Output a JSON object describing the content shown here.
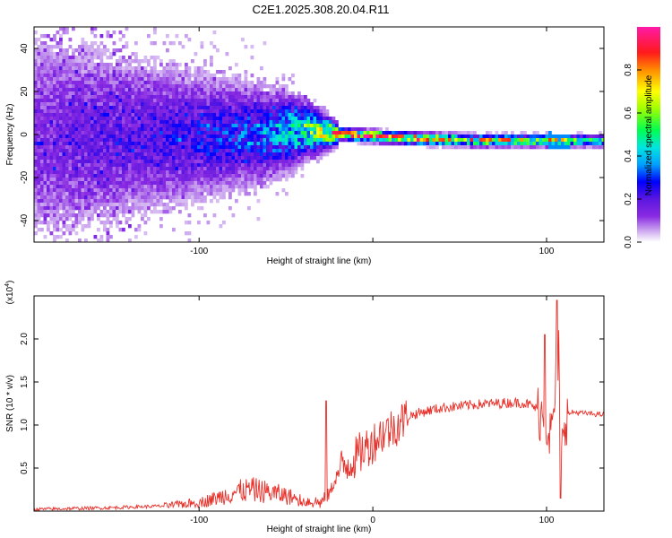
{
  "title": "C2E1.2025.308.20.04.R11",
  "chart_data": [
    {
      "type": "heatmap",
      "xlabel": "Height of straight line (km)",
      "ylabel": "Frequency (Hz)",
      "xlim": [
        -195,
        133
      ],
      "ylim": [
        -50,
        50
      ],
      "xticks": [
        -100,
        0,
        100
      ],
      "xtick_labels": [
        "-100",
        "",
        "100"
      ],
      "yticks": [
        -40,
        -20,
        0,
        20,
        40
      ],
      "ytick_labels": [
        "-40",
        "-20",
        "0",
        "20",
        "40"
      ],
      "colorbar": {
        "label": "Normalized spectral amplitude",
        "range": [
          0,
          1
        ],
        "ticks": [
          0.0,
          0.2,
          0.4,
          0.6,
          0.8
        ],
        "tick_labels": [
          "0.0",
          "0.2",
          "0.4",
          "0.6",
          "0.8"
        ]
      },
      "ridge": {
        "description": "dominant frequency ridge",
        "x": [
          -195,
          -140,
          -100,
          -60,
          -40,
          -20,
          0,
          20,
          60,
          100,
          110,
          133
        ],
        "frequency": [
          0,
          0,
          0,
          1,
          3,
          1,
          0,
          -1,
          -2,
          -2,
          -2,
          -2
        ],
        "amplitude": [
          0.15,
          0.2,
          0.25,
          0.35,
          0.5,
          0.8,
          0.9,
          0.85,
          0.7,
          0.7,
          0.6,
          0.5
        ]
      }
    },
    {
      "type": "line",
      "xlabel": "Height of straight line (km)",
      "ylabel": "SNR (10 * v/v)",
      "multiplier": "(x10^4)",
      "xlim": [
        -195,
        133
      ],
      "ylim": [
        0,
        2.5
      ],
      "xticks": [
        -100,
        0,
        100
      ],
      "xtick_labels": [
        "-100",
        "0",
        "100"
      ],
      "yticks": [
        0.5,
        1.0,
        1.5,
        2.0
      ],
      "ytick_labels": [
        "0.5",
        "1.0",
        "1.5",
        "2.0"
      ],
      "series": [
        {
          "name": "SNR",
          "color": "#e8312a",
          "x": [
            -195,
            -150,
            -120,
            -100,
            -90,
            -80,
            -70,
            -60,
            -50,
            -40,
            -30,
            -25,
            -20,
            -15,
            -10,
            -5,
            0,
            5,
            10,
            15,
            20,
            30,
            40,
            50,
            60,
            70,
            80,
            85,
            90,
            95,
            100,
            103,
            105,
            107,
            108,
            110,
            115,
            120,
            125,
            133
          ],
          "y": [
            0.02,
            0.04,
            0.06,
            0.1,
            0.15,
            0.22,
            0.25,
            0.22,
            0.18,
            0.12,
            0.1,
            0.2,
            0.45,
            0.55,
            0.62,
            0.72,
            0.8,
            0.9,
            0.95,
            1.02,
            1.1,
            1.16,
            1.2,
            1.22,
            1.24,
            1.25,
            1.26,
            1.26,
            1.24,
            1.18,
            1.05,
            0.85,
            1.4,
            1.9,
            0.3,
            1.1,
            1.15,
            1.14,
            1.13,
            1.12
          ]
        }
      ],
      "peaks": {
        "x": [
          -27,
          99,
          106,
          108
        ],
        "y": [
          1.28,
          2.05,
          2.45,
          0.15
        ]
      }
    }
  ]
}
